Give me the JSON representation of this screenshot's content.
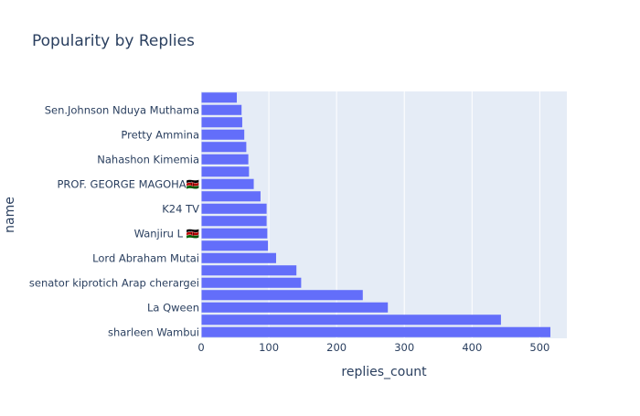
{
  "chart_data": {
    "type": "bar",
    "orientation": "horizontal",
    "title": "Popularity by Replies",
    "xlabel": "replies_count",
    "ylabel": "name",
    "xlim": [
      0,
      540
    ],
    "xticks": [
      0,
      100,
      200,
      300,
      400,
      500
    ],
    "grid": true,
    "legend": "none",
    "bar_color": "#636efa",
    "plot_bg": "#e5ecf6",
    "categories": [
      "sharleen Wambui",
      "",
      "La Qween",
      "",
      "senator  kiprotich Arap cherargei",
      "",
      "Lord Abraham Mutai",
      "",
      "Wanjiru L 🇰🇪",
      "",
      "K24 TV",
      "",
      "PROF. GEORGE MAGOHA🇰🇪",
      "",
      "Nahashon Kimemia",
      "",
      "Pretty Ammina",
      "",
      "Sen.Johnson Nduya Muthama",
      ""
    ],
    "values": [
      515,
      442,
      275,
      238,
      147,
      140,
      110,
      98,
      97,
      96,
      96,
      87,
      77,
      70,
      69,
      66,
      63,
      60,
      59,
      52
    ]
  }
}
